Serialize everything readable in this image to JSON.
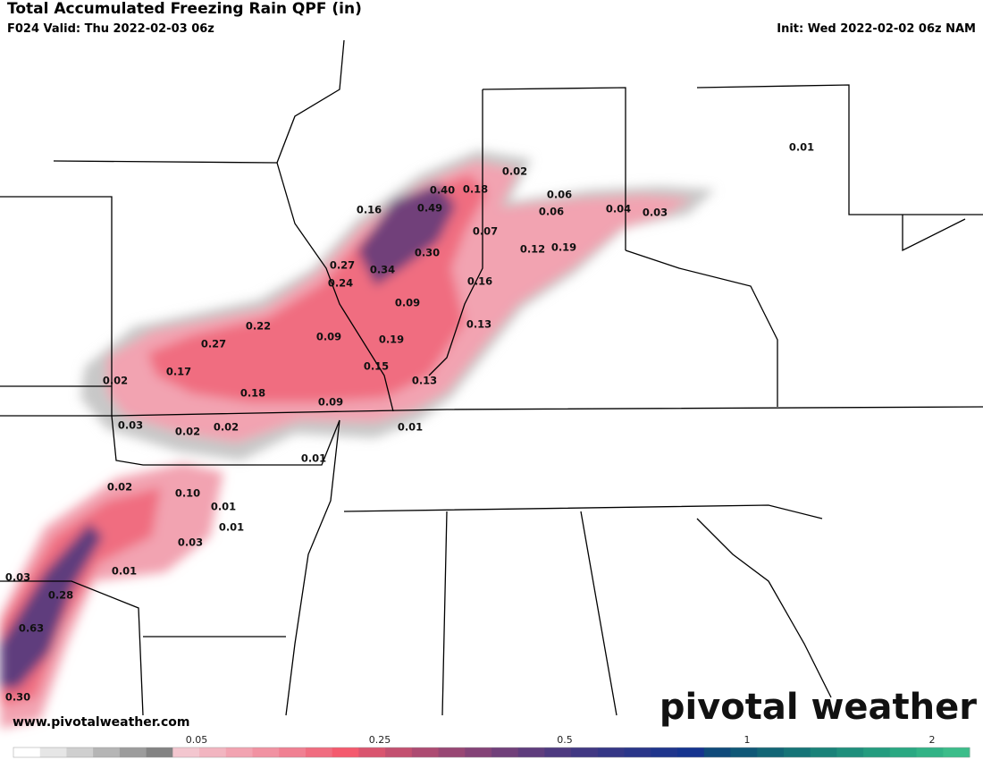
{
  "header": {
    "title": "Total Accumulated Freezing Rain QPF (in)",
    "valid": "F024 Valid: Thu 2022-02-03 06z",
    "init": "Init: Wed 2022-02-02 06z NAM"
  },
  "point_labels": [
    "0.01",
    "0.02",
    "0.40",
    "0.18",
    "0.06",
    "0.16",
    "0.49",
    "0.06",
    "0.04",
    "0.03",
    "0.07",
    "0.12",
    "0.19",
    "0.30",
    "0.27",
    "0.34",
    "0.24",
    "0.16",
    "0.09",
    "0.22",
    "0.13",
    "0.09",
    "0.19",
    "0.27",
    "0.17",
    "0.15",
    "0.02",
    "0.13",
    "0.18",
    "0.09",
    "0.03",
    "0.01",
    "0.02",
    "0.02",
    "0.01",
    "0.02",
    "0.10",
    "0.01",
    "0.01",
    "0.03",
    "0.01",
    "0.03",
    "0.28",
    "0.63",
    "0.30"
  ],
  "website": "www.pivotalweather.com",
  "logo": "pivotal weather",
  "colorbar": {
    "labels": [
      "0.05",
      "0.25",
      "0.5",
      "1",
      "2"
    ],
    "colors": [
      "#ffffff",
      "#e6e6e6",
      "#cfcfcf",
      "#b5b5b5",
      "#9c9c9c",
      "#838383",
      "#f3c6cf",
      "#f2b5c0",
      "#f2a3b1",
      "#f192a2",
      "#f08092",
      "#f06d80",
      "#f45a6e",
      "#d9556f",
      "#c35070",
      "#ad4b72",
      "#984774",
      "#844377",
      "#71407a",
      "#5f3d7d",
      "#4e3a80",
      "#413883",
      "#353786",
      "#2a3689",
      "#1f358c",
      "#15348f",
      "#0f4a7a",
      "#0f5877",
      "#126676",
      "#167477",
      "#1a8279",
      "#1f8f7c",
      "#249c7f",
      "#2aa882",
      "#32b386",
      "#3cbd8a"
    ]
  }
}
